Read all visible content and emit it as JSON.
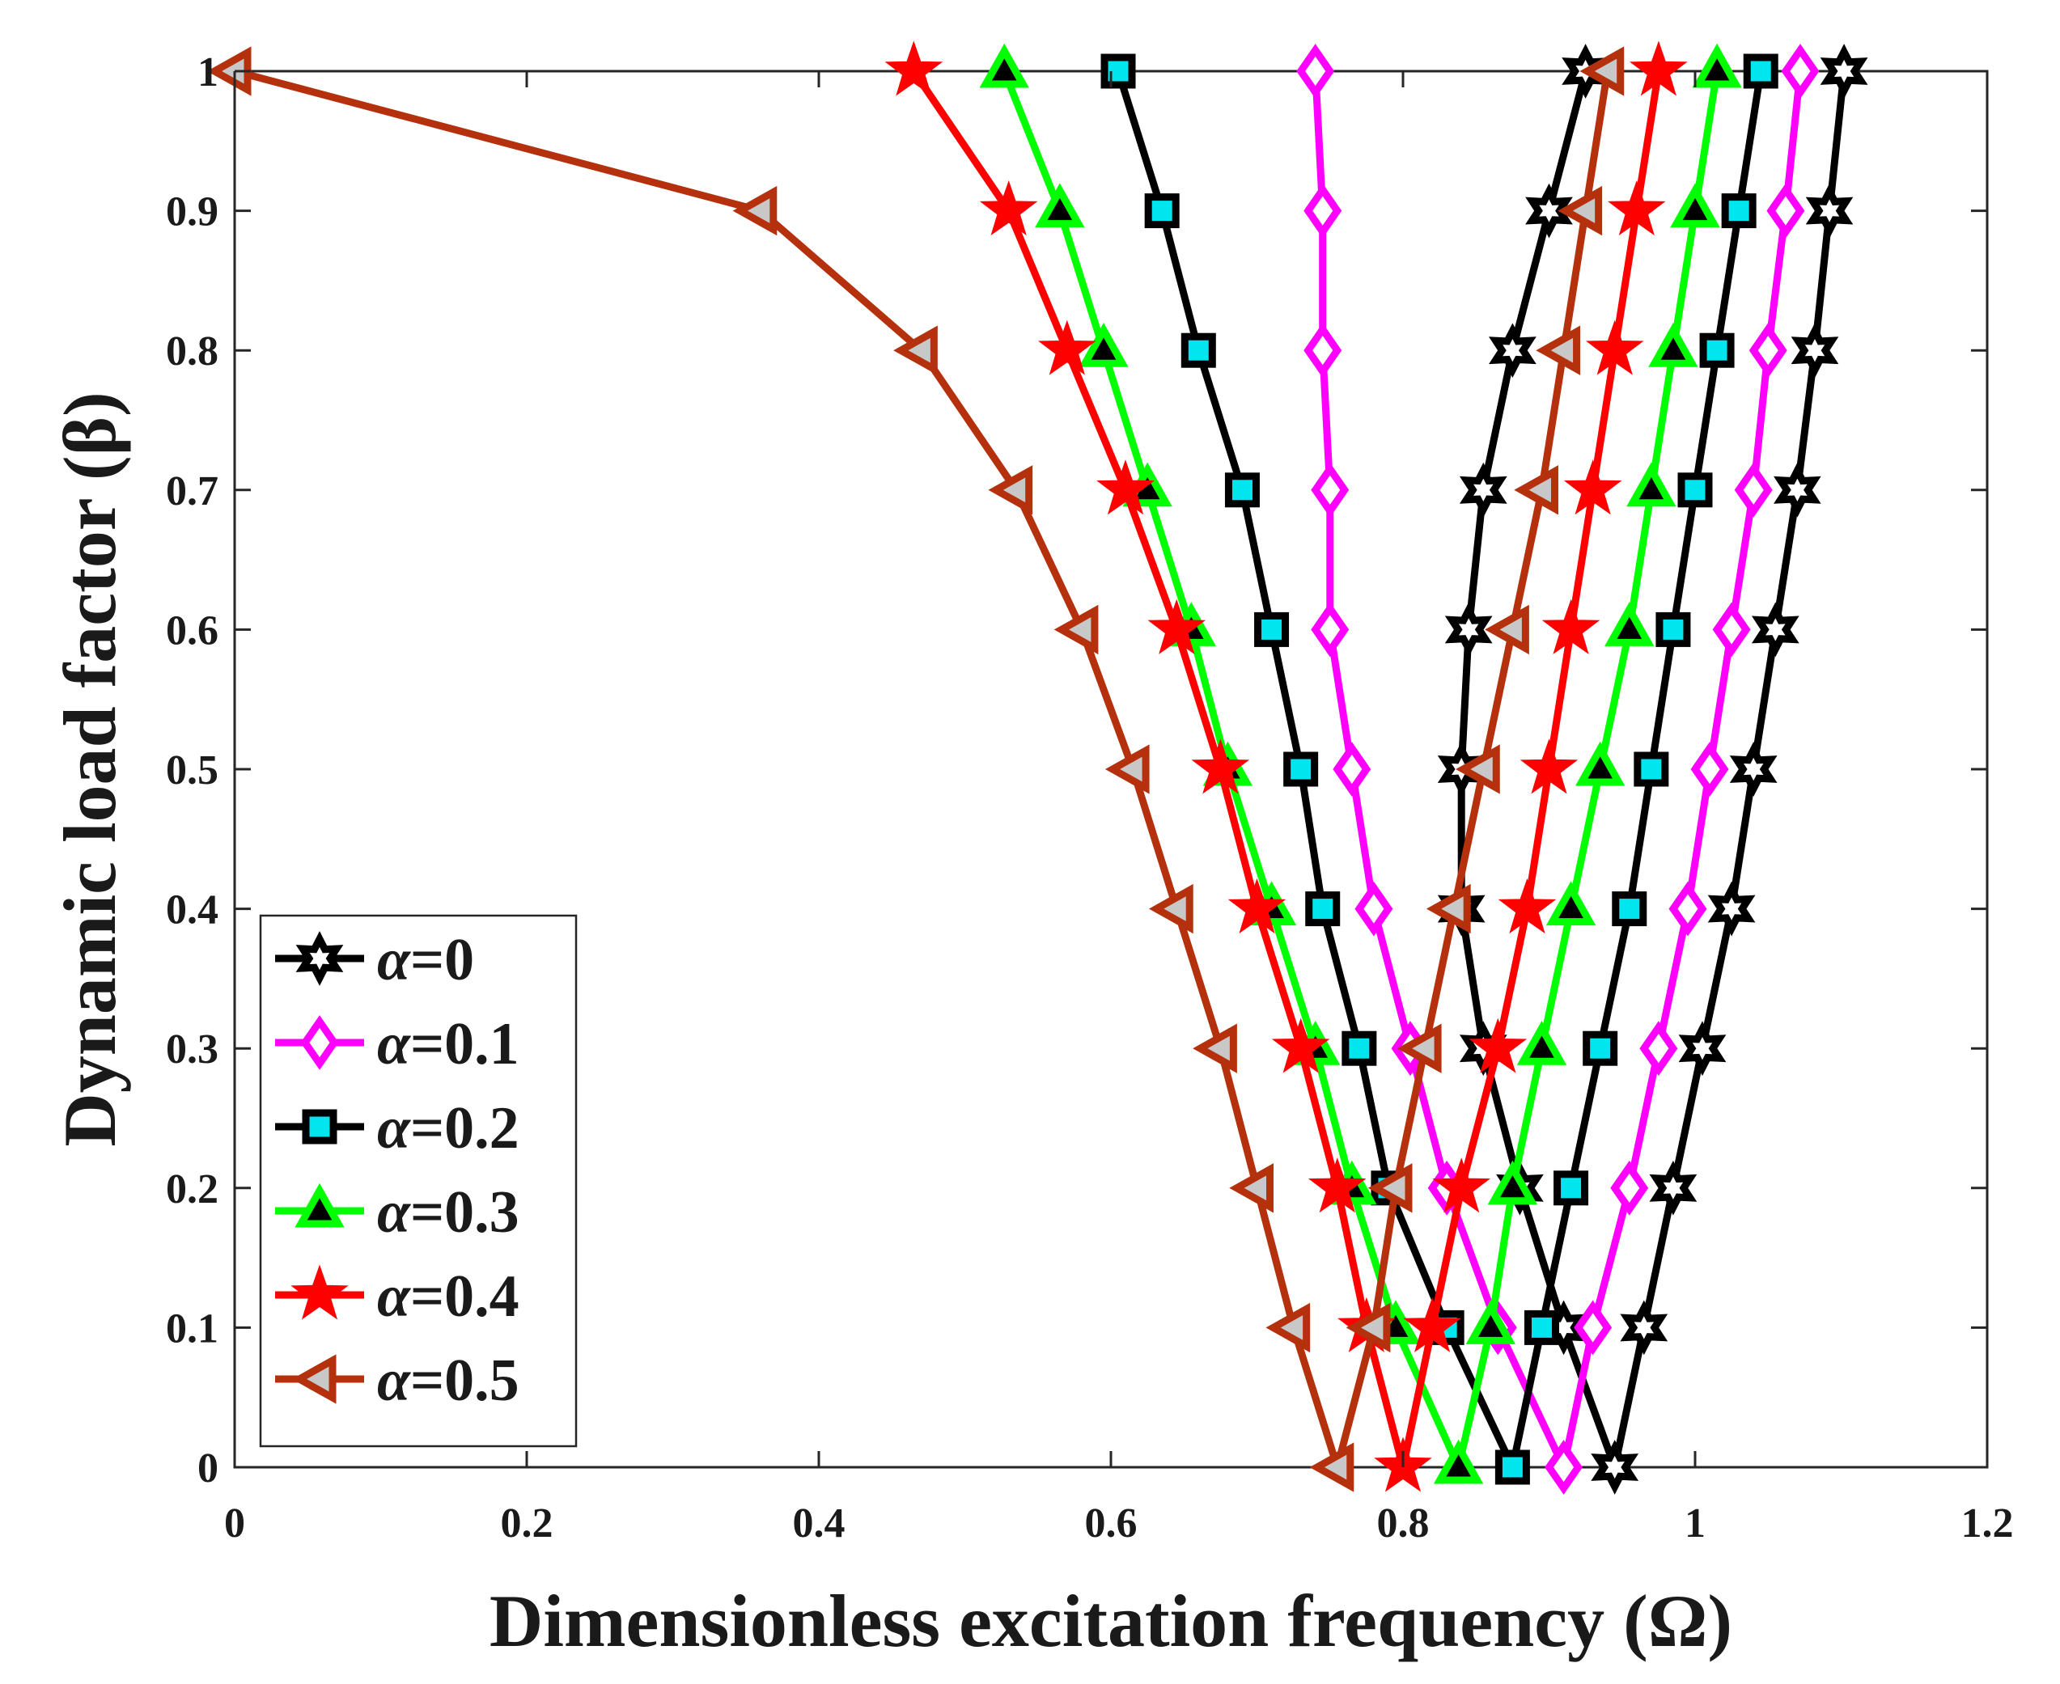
{
  "chart_data": {
    "type": "line",
    "xlabel": "Dimensionless excitation frequency (Ω)",
    "ylabel": "Dynamic load factor (β)",
    "xlim": [
      0,
      1.2
    ],
    "ylim": [
      0,
      1
    ],
    "grid": false,
    "legend_position": "bottom-left",
    "x_ticks": [
      "0",
      "0.2",
      "0.4",
      "0.6",
      "0.8",
      "1",
      "1.2"
    ],
    "y_ticks": [
      "0",
      "0.1",
      "0.2",
      "0.3",
      "0.4",
      "0.5",
      "0.6",
      "0.7",
      "0.8",
      "0.9",
      "1"
    ],
    "beta": [
      0,
      0.1,
      0.2,
      0.3,
      0.4,
      0.5,
      0.6,
      0.7,
      0.8,
      0.9,
      1
    ],
    "series": [
      {
        "name": "α=0",
        "greek": "α",
        "suffix": "=0",
        "color": "#000000",
        "marker": "hexagram",
        "marker_fill": "#ffffff",
        "left": [
          0.945,
          0.91,
          0.88,
          0.855,
          0.84,
          0.84,
          0.845,
          0.855,
          0.875,
          0.9,
          0.925
        ],
        "right": [
          0.945,
          0.965,
          0.985,
          1.005,
          1.025,
          1.04,
          1.055,
          1.07,
          1.082,
          1.092,
          1.102
        ]
      },
      {
        "name": "α=0.1",
        "greek": "α",
        "suffix": "=0.1",
        "color": "#ff00ff",
        "marker": "diamond",
        "marker_fill": "#ffffff",
        "left": [
          0.91,
          0.865,
          0.83,
          0.805,
          0.78,
          0.765,
          0.75,
          0.75,
          0.745,
          0.745,
          0.74
        ],
        "right": [
          0.91,
          0.93,
          0.955,
          0.975,
          0.995,
          1.01,
          1.025,
          1.04,
          1.05,
          1.062,
          1.072
        ]
      },
      {
        "name": "α=0.2",
        "greek": "α",
        "suffix": "=0.2",
        "color": "#000000",
        "marker": "square",
        "marker_fill": "#00e5ee",
        "left": [
          0.875,
          0.83,
          0.79,
          0.77,
          0.745,
          0.73,
          0.71,
          0.69,
          0.66,
          0.635,
          0.605
        ],
        "right": [
          0.875,
          0.895,
          0.915,
          0.935,
          0.955,
          0.97,
          0.985,
          1.0,
          1.015,
          1.03,
          1.045
        ]
      },
      {
        "name": "α=0.3",
        "greek": "α",
        "suffix": "=0.3",
        "color": "#00ff00",
        "marker": "triangle-up",
        "marker_fill": "#000000",
        "left": [
          0.838,
          0.795,
          0.765,
          0.74,
          0.71,
          0.68,
          0.655,
          0.625,
          0.595,
          0.565,
          0.527
        ],
        "right": [
          0.838,
          0.86,
          0.875,
          0.895,
          0.915,
          0.935,
          0.955,
          0.97,
          0.985,
          1.0,
          1.015
        ]
      },
      {
        "name": "α=0.4",
        "greek": "α",
        "suffix": "=0.4",
        "color": "#ff0000",
        "marker": "pentagram",
        "marker_fill": "#ff0000",
        "left": [
          0.8,
          0.775,
          0.755,
          0.73,
          0.7,
          0.675,
          0.645,
          0.61,
          0.57,
          0.53,
          0.465
        ],
        "right": [
          0.8,
          0.82,
          0.84,
          0.865,
          0.885,
          0.9,
          0.915,
          0.93,
          0.945,
          0.96,
          0.975
        ]
      },
      {
        "name": "α=0.5",
        "greek": "α",
        "suffix": "=0.5",
        "color": "#b5310d",
        "marker": "triangle-left",
        "marker_fill": "#c8c8c8",
        "left": [
          0.755,
          0.725,
          0.7,
          0.675,
          0.645,
          0.615,
          0.58,
          0.535,
          0.47,
          0.36,
          0.0
        ],
        "right": [
          0.755,
          0.78,
          0.795,
          0.815,
          0.835,
          0.855,
          0.875,
          0.895,
          0.91,
          0.925,
          0.94
        ]
      }
    ]
  }
}
